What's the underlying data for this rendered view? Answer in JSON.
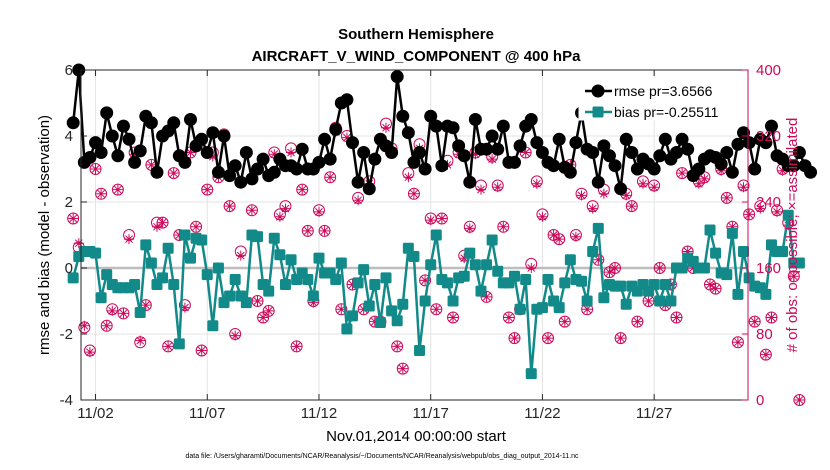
{
  "chart_data": {
    "type": "line",
    "title": "Southern Hemisphere",
    "subtitle": "AIRCRAFT_V_WIND_COMPONENT @ 400 hPa",
    "xlabel": "Nov.01,2014 00:00:00 start",
    "ylabel_left": "rmse and bias (model - observation)",
    "ylabel_right": "# of obs: o=possible; ×=assimilated",
    "x_tick_labels": [
      "11/02",
      "11/07",
      "11/12",
      "11/17",
      "11/22",
      "11/27"
    ],
    "x_tick_days": [
      2,
      7,
      12,
      17,
      22,
      27
    ],
    "x_start_day": 1,
    "x_step_days": 0.25,
    "xlim": [
      1.35,
      31.2
    ],
    "ylim_left": [
      -4,
      6
    ],
    "yticks_left": [
      "-4",
      "-2",
      "0",
      "2",
      "4",
      "6"
    ],
    "ylim_right": [
      0,
      400
    ],
    "yticks_right": [
      "0",
      "80",
      "160",
      "240",
      "320",
      "400"
    ],
    "grid": true,
    "legend_position": "top-right",
    "colors": {
      "rmse": "#000000",
      "bias": "#128a8a",
      "obs": "#cc0a5a",
      "zero_line": "#bdbdbd"
    },
    "series": [
      {
        "name": "rmse",
        "legend": "rmse pr=3.6566",
        "values": [
          4.4,
          6.0,
          3.2,
          3.35,
          3.8,
          3.5,
          4.7,
          4.0,
          3.4,
          4.3,
          3.9,
          3.2,
          3.55,
          4.6,
          4.4,
          2.9,
          4.0,
          4.15,
          4.4,
          3.4,
          3.2,
          4.5,
          3.7,
          3.9,
          3.5,
          4.1,
          2.9,
          4.0,
          2.8,
          3.1,
          2.6,
          3.5,
          2.7,
          3.0,
          3.3,
          2.8,
          2.9,
          3.3,
          3.1,
          3.1,
          3.0,
          3.6,
          3.0,
          3.0,
          3.2,
          3.9,
          3.3,
          4.2,
          5.0,
          5.1,
          3.8,
          2.6,
          3.5,
          2.4,
          3.3,
          3.9,
          3.7,
          3.5,
          5.8,
          4.6,
          4.1,
          3.2,
          3.5,
          3.0,
          4.6,
          4.3,
          3.1,
          4.3,
          4.25,
          3.7,
          3.4,
          2.6,
          4.5,
          3.6,
          3.6,
          4.0,
          3.6,
          4.3,
          3.2,
          3.2,
          3.7,
          4.3,
          4.5,
          3.8,
          3.5,
          3.2,
          3.1,
          3.9,
          3.05,
          2.9,
          3.8,
          4.7,
          3.6,
          3.5,
          2.6,
          3.7,
          3.4,
          3.1,
          2.4,
          3.9,
          3.5,
          3.0,
          3.3,
          3.15,
          3.0,
          3.4,
          3.9,
          3.3,
          3.5,
          3.9,
          3.6,
          2.8,
          3.0,
          3.3,
          3.4,
          3.35,
          3.15,
          3.5,
          2.9,
          3.75,
          4.1,
          3.8,
          3.0,
          3.9,
          3.8,
          4.3,
          3.4,
          3.3,
          3.1,
          3.1,
          3.5,
          3.1,
          2.9
        ]
      },
      {
        "name": "bias",
        "legend": "bias pr=-0.25511",
        "values": [
          -0.3,
          0.35,
          0.5,
          0.5,
          0.45,
          -0.9,
          -0.2,
          -0.5,
          -0.6,
          -0.6,
          -0.6,
          -0.5,
          -1.35,
          0.7,
          0.15,
          -0.5,
          -0.3,
          0.6,
          -0.5,
          -2.3,
          1.0,
          0.3,
          0.9,
          0.85,
          -0.2,
          -1.75,
          0.0,
          -1.05,
          -0.85,
          -0.35,
          -0.85,
          -1.05,
          1.0,
          0.95,
          -0.5,
          -0.7,
          0.9,
          0.4,
          -0.5,
          0.25,
          -0.35,
          -0.15,
          -0.35,
          -0.85,
          0.3,
          -0.15,
          -0.15,
          -0.35,
          0.15,
          -1.85,
          -1.45,
          -0.45,
          -0.05,
          -1.15,
          -0.5,
          -1.65,
          -0.3,
          -1.3,
          -1.6,
          -1.1,
          0.6,
          0.35,
          -2.5,
          -1.0,
          0.1,
          1.0,
          -0.35,
          -0.45,
          -1.0,
          -0.3,
          -0.25,
          0.45,
          0.1,
          -0.7,
          0.1,
          0.85,
          -0.1,
          -0.45,
          -0.45,
          -0.25,
          -1.25,
          -0.35,
          -3.2,
          -1.25,
          -1.2,
          -0.35,
          -1.0,
          -1.2,
          -0.45,
          0.25,
          -0.35,
          -0.4,
          -1.0,
          0.5,
          1.2,
          -0.9,
          -0.5,
          -0.55,
          -0.55,
          -1.1,
          -0.55,
          -0.7,
          -0.5,
          -0.7,
          -0.5,
          -1.0,
          -0.5,
          -1.0,
          0.0,
          0.0,
          0.3,
          0.2,
          0.0,
          0.0,
          1.15,
          0.45,
          -0.15,
          -0.2,
          1.05,
          -0.8,
          0.5,
          -0.3,
          -0.55,
          -0.6,
          -0.8,
          0.7,
          0.5,
          0.5,
          1.6,
          0.15,
          0.15
        ]
      },
      {
        "name": "obs_possible",
        "marker": "circle",
        "values": [
          220,
          185,
          88,
          60,
          280,
          250,
          90,
          110,
          255,
          105,
          200,
          300,
          70,
          115,
          285,
          215,
          215,
          65,
          275,
          200,
          115,
          300,
          210,
          60,
          255,
          300,
          270,
          322,
          235,
          80,
          180,
          300,
          230,
          120,
          100,
          108,
          300,
          225,
          235,
          305,
          65,
          255,
          205,
          120,
          230,
          205,
          270,
          330,
          110,
          320,
          140,
          245,
          110,
          265,
          95,
          95,
          335,
          305,
          65,
          38,
          275,
          250,
          310,
          145,
          220,
          110,
          220,
          290,
          100,
          300,
          175,
          210,
          300,
          260,
          125,
          295,
          260,
          210,
          100,
          75,
          110,
          300,
          165,
          265,
          225,
          75,
          200,
          195,
          95,
          285,
          200,
          250,
          110,
          235,
          170,
          255,
          155,
          160,
          75,
          250,
          235,
          95,
          265,
          120,
          260,
          160,
          115,
          140,
          100,
          275,
          180,
          160,
          265,
          270,
          140,
          135,
          280,
          245,
          210,
          70,
          260,
          225,
          95,
          235,
          55,
          100,
          230,
          280,
          215,
          150,
          0
        ]
      },
      {
        "name": "obs_assimilated",
        "marker": "asterisk",
        "values": [
          220,
          190,
          90,
          58,
          280,
          250,
          90,
          108,
          255,
          105,
          195,
          298,
          72,
          115,
          285,
          210,
          215,
          65,
          275,
          200,
          112,
          300,
          210,
          60,
          255,
          295,
          270,
          320,
          235,
          78,
          175,
          300,
          230,
          120,
          100,
          108,
          298,
          222,
          232,
          300,
          65,
          255,
          205,
          118,
          228,
          205,
          270,
          325,
          110,
          318,
          140,
          242,
          110,
          262,
          95,
          95,
          330,
          300,
          65,
          38,
          270,
          250,
          305,
          145,
          218,
          110,
          220,
          285,
          100,
          298,
          172,
          208,
          298,
          255,
          125,
          292,
          258,
          210,
          100,
          75,
          110,
          300,
          160,
          262,
          222,
          75,
          200,
          195,
          95,
          285,
          198,
          248,
          110,
          232,
          170,
          250,
          155,
          160,
          75,
          248,
          235,
          95,
          262,
          120,
          258,
          160,
          115,
          140,
          100,
          275,
          180,
          160,
          262,
          268,
          140,
          135,
          278,
          245,
          210,
          70,
          258,
          225,
          95,
          232,
          55,
          100,
          228,
          278,
          212,
          150,
          0
        ]
      }
    ],
    "footnote": "data file: /Users/gharamti/Documents/NCAR/Reanalysis/~/Documents/NCAR/Reanalysis/webpub/obs_diag_output_2014-11.nc"
  }
}
